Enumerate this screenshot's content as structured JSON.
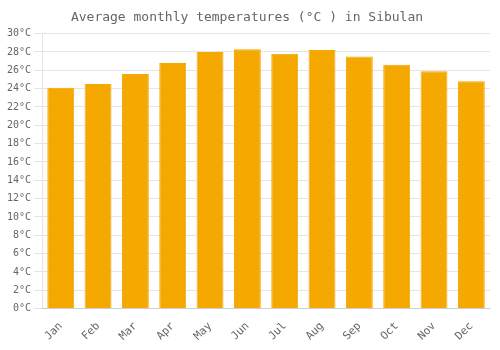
{
  "chart_data": {
    "type": "bar",
    "title": "Average monthly temperatures (°C ) in Sibulan",
    "categories": [
      "Jan",
      "Feb",
      "Mar",
      "Apr",
      "May",
      "Jun",
      "Jul",
      "Aug",
      "Sep",
      "Oct",
      "Nov",
      "Dec"
    ],
    "values": [
      24.1,
      24.5,
      25.6,
      26.8,
      28.0,
      28.3,
      27.8,
      28.2,
      27.5,
      26.6,
      25.9,
      24.8
    ],
    "color": "#F5A800",
    "ylim": [
      0,
      30
    ],
    "yticks": [
      {
        "value": 0,
        "label": "0°C"
      },
      {
        "value": 2,
        "label": "2°C"
      },
      {
        "value": 4,
        "label": "4°C"
      },
      {
        "value": 6,
        "label": "6°C"
      },
      {
        "value": 8,
        "label": "8°C"
      },
      {
        "value": 10,
        "label": "10°C"
      },
      {
        "value": 12,
        "label": "12°C"
      },
      {
        "value": 14,
        "label": "14°C"
      },
      {
        "value": 16,
        "label": "16°C"
      },
      {
        "value": 18,
        "label": "18°C"
      },
      {
        "value": 20,
        "label": "20°C"
      },
      {
        "value": 22,
        "label": "22°C"
      },
      {
        "value": 24,
        "label": "24°C"
      },
      {
        "value": 26,
        "label": "26°C"
      },
      {
        "value": 28,
        "label": "28°C"
      },
      {
        "value": 30,
        "label": "30°C"
      }
    ],
    "grid": true
  }
}
